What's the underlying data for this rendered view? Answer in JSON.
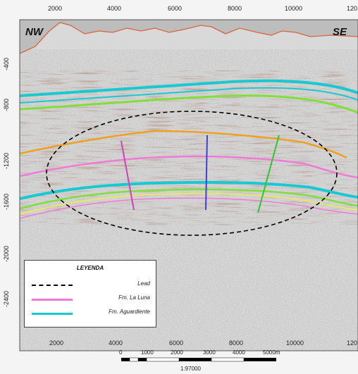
{
  "corner_labels": {
    "left": "NW",
    "right": "SE"
  },
  "x_axis": {
    "top_ticks": [
      "2000",
      "4000",
      "6000",
      "8000",
      "10000",
      "120"
    ],
    "bottom_ticks": [
      "2000",
      "4000",
      "6000",
      "8000",
      "10000",
      "120"
    ]
  },
  "y_axis": {
    "ticks": [
      "-400",
      "-800",
      "-1200",
      "-1600",
      "-2000",
      "-2400"
    ]
  },
  "scale_bar": {
    "ticks": [
      "0",
      "1000",
      "2000",
      "3000",
      "4000",
      "5000m"
    ],
    "ratio": "1:97000"
  },
  "legend": {
    "title": "LEYENDA",
    "items": [
      {
        "label": "Lead",
        "color": "#000000",
        "style": "dashed"
      },
      {
        "label": "Fm. La Luna",
        "color": "#f07ad8",
        "style": "solid"
      },
      {
        "label": "Fm. Aguardiente",
        "color": "#19c9d2",
        "style": "solid"
      }
    ]
  },
  "colors": {
    "topography": "#d8643a",
    "horizon_cyan": "#19c9d2",
    "horizon_green": "#7fe03a",
    "horizon_orange": "#f0a020",
    "horizon_pink": "#f07ad8",
    "horizon_yellow": "#e8e66a",
    "well_magenta": "#c84fb8",
    "well_blue": "#4040d0",
    "well_green": "#3fc23f"
  }
}
